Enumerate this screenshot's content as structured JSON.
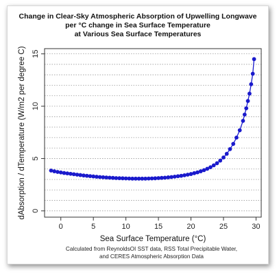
{
  "chart_data": {
    "type": "line",
    "title": [
      "Change in Clear-Sky Atmospheric Absorption of Upwelling Longwave",
      "per °C change in Sea Surface Temperature",
      "at Various Sea Surface Temperatures"
    ],
    "xlabel": "Sea Surface Temperature (°C)",
    "ylabel": "dAbsorption / dTemperature (W/m2 per degree C)",
    "xlim": [
      -2.5,
      30.8
    ],
    "ylim": [
      -0.6,
      15.5
    ],
    "xticks": [
      0,
      5,
      10,
      15,
      20,
      25,
      30
    ],
    "yticks": [
      0,
      5,
      10,
      15
    ],
    "grid": "horizontal dotted every 1 unit",
    "caption": [
      "Calculated from ReynoldsOI SST data, RSS Total Precipitable Water,",
      "and CERES Atmospheric Absorption Data"
    ],
    "series": [
      {
        "name": "",
        "color": "#1a1acc",
        "x": [
          -1.5,
          -1.0,
          -0.5,
          0.0,
          0.5,
          1.0,
          1.5,
          2.0,
          2.5,
          3.0,
          3.5,
          4.0,
          4.5,
          5.0,
          5.5,
          6.0,
          6.5,
          7.0,
          7.5,
          8.0,
          8.5,
          9.0,
          9.5,
          10.0,
          10.5,
          11.0,
          11.5,
          12.0,
          12.5,
          13.0,
          13.5,
          14.0,
          14.5,
          15.0,
          15.5,
          16.0,
          16.5,
          17.0,
          17.5,
          18.0,
          18.5,
          19.0,
          19.5,
          20.0,
          20.5,
          21.0,
          21.5,
          22.0,
          22.5,
          23.0,
          23.5,
          24.0,
          24.5,
          25.0,
          25.5,
          26.0,
          26.5,
          27.0,
          27.5,
          28.0,
          28.25,
          28.5,
          28.75,
          29.0,
          29.25,
          29.5,
          29.7
        ],
        "y": [
          3.85,
          3.78,
          3.72,
          3.67,
          3.62,
          3.58,
          3.54,
          3.5,
          3.46,
          3.42,
          3.38,
          3.35,
          3.32,
          3.29,
          3.26,
          3.23,
          3.21,
          3.19,
          3.17,
          3.15,
          3.13,
          3.12,
          3.11,
          3.1,
          3.09,
          3.08,
          3.08,
          3.08,
          3.08,
          3.08,
          3.09,
          3.1,
          3.11,
          3.13,
          3.15,
          3.17,
          3.2,
          3.23,
          3.27,
          3.31,
          3.35,
          3.4,
          3.46,
          3.52,
          3.6,
          3.68,
          3.78,
          3.89,
          4.02,
          4.17,
          4.35,
          4.55,
          4.8,
          5.1,
          5.45,
          5.9,
          6.4,
          7.0,
          7.7,
          8.6,
          9.2,
          9.8,
          10.5,
          11.2,
          12.1,
          13.1,
          14.5
        ]
      }
    ]
  }
}
